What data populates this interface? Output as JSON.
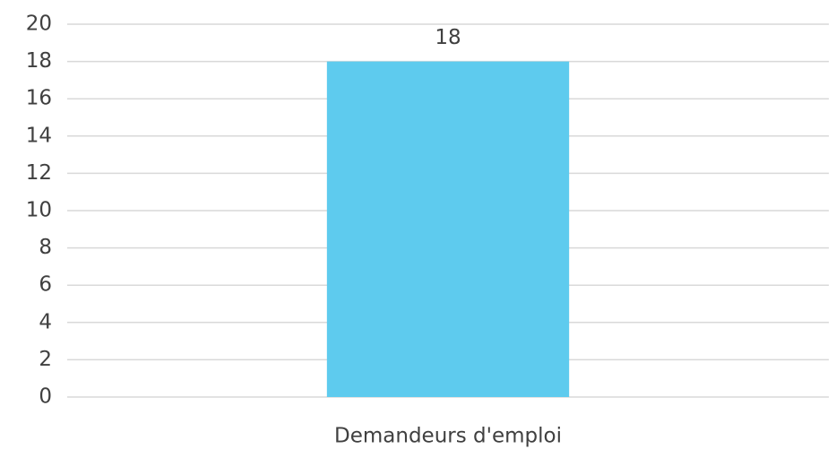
{
  "chart_data": {
    "type": "bar",
    "categories": [
      "Demandeurs d'emploi"
    ],
    "values": [
      18
    ],
    "color": "#5ecbee",
    "ylim": [
      0,
      20
    ],
    "yticks": [
      0,
      2,
      4,
      6,
      8,
      10,
      12,
      14,
      16,
      18,
      20
    ],
    "grid": true,
    "data_labels": true
  }
}
